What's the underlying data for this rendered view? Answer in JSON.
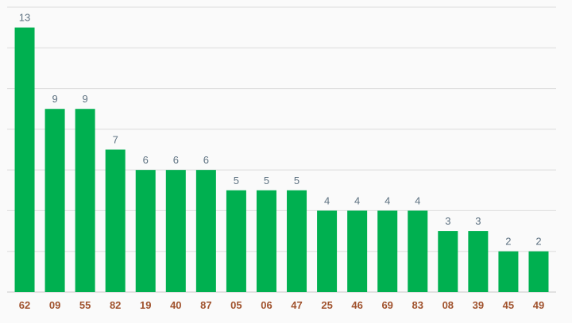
{
  "chart_data": {
    "type": "bar",
    "title": "",
    "xlabel": "",
    "ylabel": "",
    "categories": [
      "62",
      "09",
      "55",
      "82",
      "19",
      "40",
      "87",
      "05",
      "06",
      "47",
      "25",
      "46",
      "69",
      "83",
      "08",
      "39",
      "45",
      "49"
    ],
    "values": [
      13,
      9,
      9,
      7,
      6,
      6,
      6,
      5,
      5,
      5,
      4,
      4,
      4,
      4,
      3,
      3,
      2,
      2
    ],
    "ylim": [
      0,
      14
    ],
    "grid": true,
    "colors": {
      "bar": "#00b050",
      "value_label": "#5d7181",
      "tick_label": "#a0522d",
      "grid": "#dcdcdc"
    }
  }
}
